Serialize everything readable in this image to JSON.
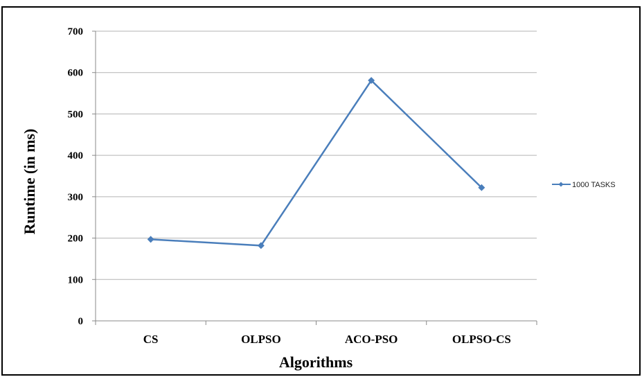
{
  "chart_data": {
    "type": "line",
    "title": "",
    "xlabel": "Algorithms",
    "ylabel": "Runtime (in ms)",
    "categories": [
      "CS",
      "OLPSO",
      "ACO-PSO",
      "OLPSO-CS"
    ],
    "series": [
      {
        "name": "1000 TASKS",
        "values": [
          197,
          182,
          581,
          322
        ],
        "color": "#4a7ebb"
      }
    ],
    "ylim": [
      0,
      700
    ],
    "yticks": [
      "0",
      "100",
      "200",
      "300",
      "400",
      "500",
      "600",
      "700"
    ],
    "grid": true,
    "legend_position": "right"
  }
}
